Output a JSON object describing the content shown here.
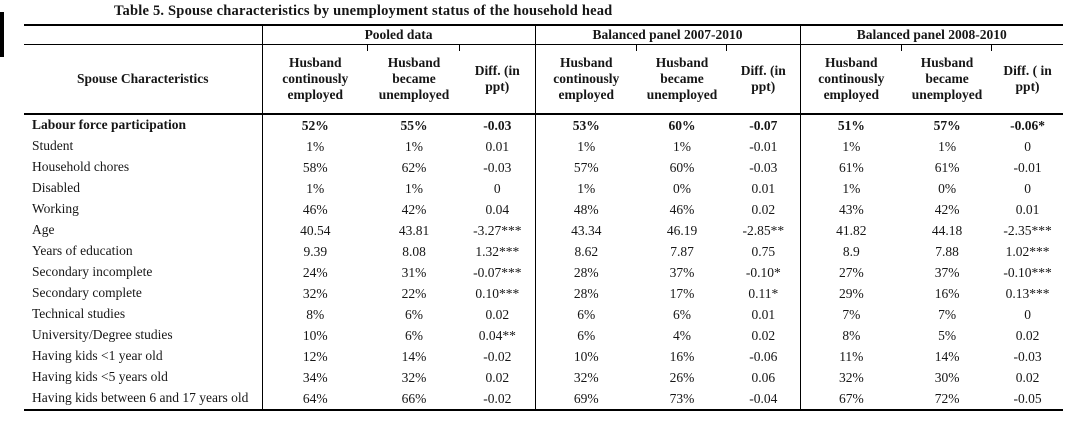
{
  "title": "Table 5. Spouse characteristics by unemployment status of the household head",
  "table": {
    "row_header": "Spouse Characteristics",
    "panels": [
      {
        "title": "Pooled data",
        "columns": [
          "Husband continously employed",
          "Husband became unemployed",
          "Diff. (in ppt)"
        ]
      },
      {
        "title": "Balanced panel 2007-2010",
        "columns": [
          "Husband continously employed",
          "Husband became unemployed",
          "Diff. (in ppt)"
        ]
      },
      {
        "title": "Balanced panel 2008-2010",
        "columns": [
          "Husband continously employed",
          "Husband became unemployed",
          "Diff. ( in ppt)"
        ]
      }
    ],
    "rows": [
      {
        "label": "Labour force participation",
        "bold": true,
        "values": [
          "52%",
          "55%",
          "-0.03",
          "53%",
          "60%",
          "-0.07",
          "51%",
          "57%",
          "-0.06*"
        ]
      },
      {
        "label": "Student",
        "bold": false,
        "values": [
          "1%",
          "1%",
          "0.01",
          "1%",
          "1%",
          "-0.01",
          "1%",
          "1%",
          "0"
        ]
      },
      {
        "label": "Household chores",
        "bold": false,
        "values": [
          "58%",
          "62%",
          "-0.03",
          "57%",
          "60%",
          "-0.03",
          "61%",
          "61%",
          "-0.01"
        ]
      },
      {
        "label": "Disabled",
        "bold": false,
        "values": [
          "1%",
          "1%",
          "0",
          "1%",
          "0%",
          "0.01",
          "1%",
          "0%",
          "0"
        ]
      },
      {
        "label": "Working",
        "bold": false,
        "values": [
          "46%",
          "42%",
          "0.04",
          "48%",
          "46%",
          "0.02",
          "43%",
          "42%",
          "0.01"
        ]
      },
      {
        "label": "Age",
        "bold": false,
        "values": [
          "40.54",
          "43.81",
          "-3.27***",
          "43.34",
          "46.19",
          "-2.85**",
          "41.82",
          "44.18",
          "-2.35***"
        ]
      },
      {
        "label": "Years of education",
        "bold": false,
        "values": [
          "9.39",
          "8.08",
          "1.32***",
          "8.62",
          "7.87",
          "0.75",
          "8.9",
          "7.88",
          "1.02***"
        ]
      },
      {
        "label": "Secondary incomplete",
        "bold": false,
        "values": [
          "24%",
          "31%",
          "-0.07***",
          "28%",
          "37%",
          "-0.10*",
          "27%",
          "37%",
          "-0.10***"
        ]
      },
      {
        "label": "Secondary complete",
        "bold": false,
        "values": [
          "32%",
          "22%",
          "0.10***",
          "28%",
          "17%",
          "0.11*",
          "29%",
          "16%",
          "0.13***"
        ]
      },
      {
        "label": "Technical studies",
        "bold": false,
        "values": [
          "8%",
          "6%",
          "0.02",
          "6%",
          "6%",
          "0.01",
          "7%",
          "7%",
          "0"
        ]
      },
      {
        "label": "University/Degree studies",
        "bold": false,
        "values": [
          "10%",
          "6%",
          "0.04**",
          "6%",
          "4%",
          "0.02",
          "8%",
          "5%",
          "0.02"
        ]
      },
      {
        "label": "Having kids <1 year old",
        "bold": false,
        "values": [
          "12%",
          "14%",
          "-0.02",
          "10%",
          "16%",
          "-0.06",
          "11%",
          "14%",
          "-0.03"
        ]
      },
      {
        "label": "Having kids <5 years old",
        "bold": false,
        "values": [
          "34%",
          "32%",
          "0.02",
          "32%",
          "26%",
          "0.06",
          "32%",
          "30%",
          "0.02"
        ]
      },
      {
        "label": "Having kids between 6 and 17 years old",
        "bold": false,
        "values": [
          "64%",
          "66%",
          "-0.02",
          "69%",
          "73%",
          "-0.04",
          "67%",
          "72%",
          "-0.05"
        ]
      }
    ]
  }
}
